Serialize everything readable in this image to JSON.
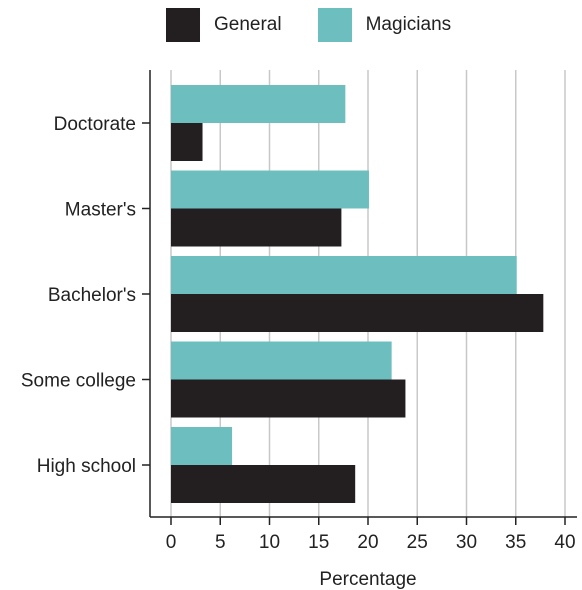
{
  "chart_data": {
    "type": "bar",
    "orientation": "horizontal",
    "categories": [
      "Doctorate",
      "Master's",
      "Bachelor's",
      "Some college",
      "High school"
    ],
    "series": [
      {
        "name": "General",
        "color": "#231f20",
        "values": [
          3.2,
          17.3,
          37.8,
          23.8,
          18.7
        ]
      },
      {
        "name": "Magicians",
        "color": "#6dbfbf",
        "values": [
          17.7,
          20.1,
          35.1,
          22.4,
          6.2
        ]
      }
    ],
    "xlabel": "Percentage",
    "ylabel": "",
    "xlim": [
      0,
      40
    ],
    "xticks": [
      "0",
      "5",
      "10",
      "15",
      "20",
      "25",
      "30",
      "35",
      "40"
    ],
    "grid": "vertical",
    "legend_position": "top"
  }
}
